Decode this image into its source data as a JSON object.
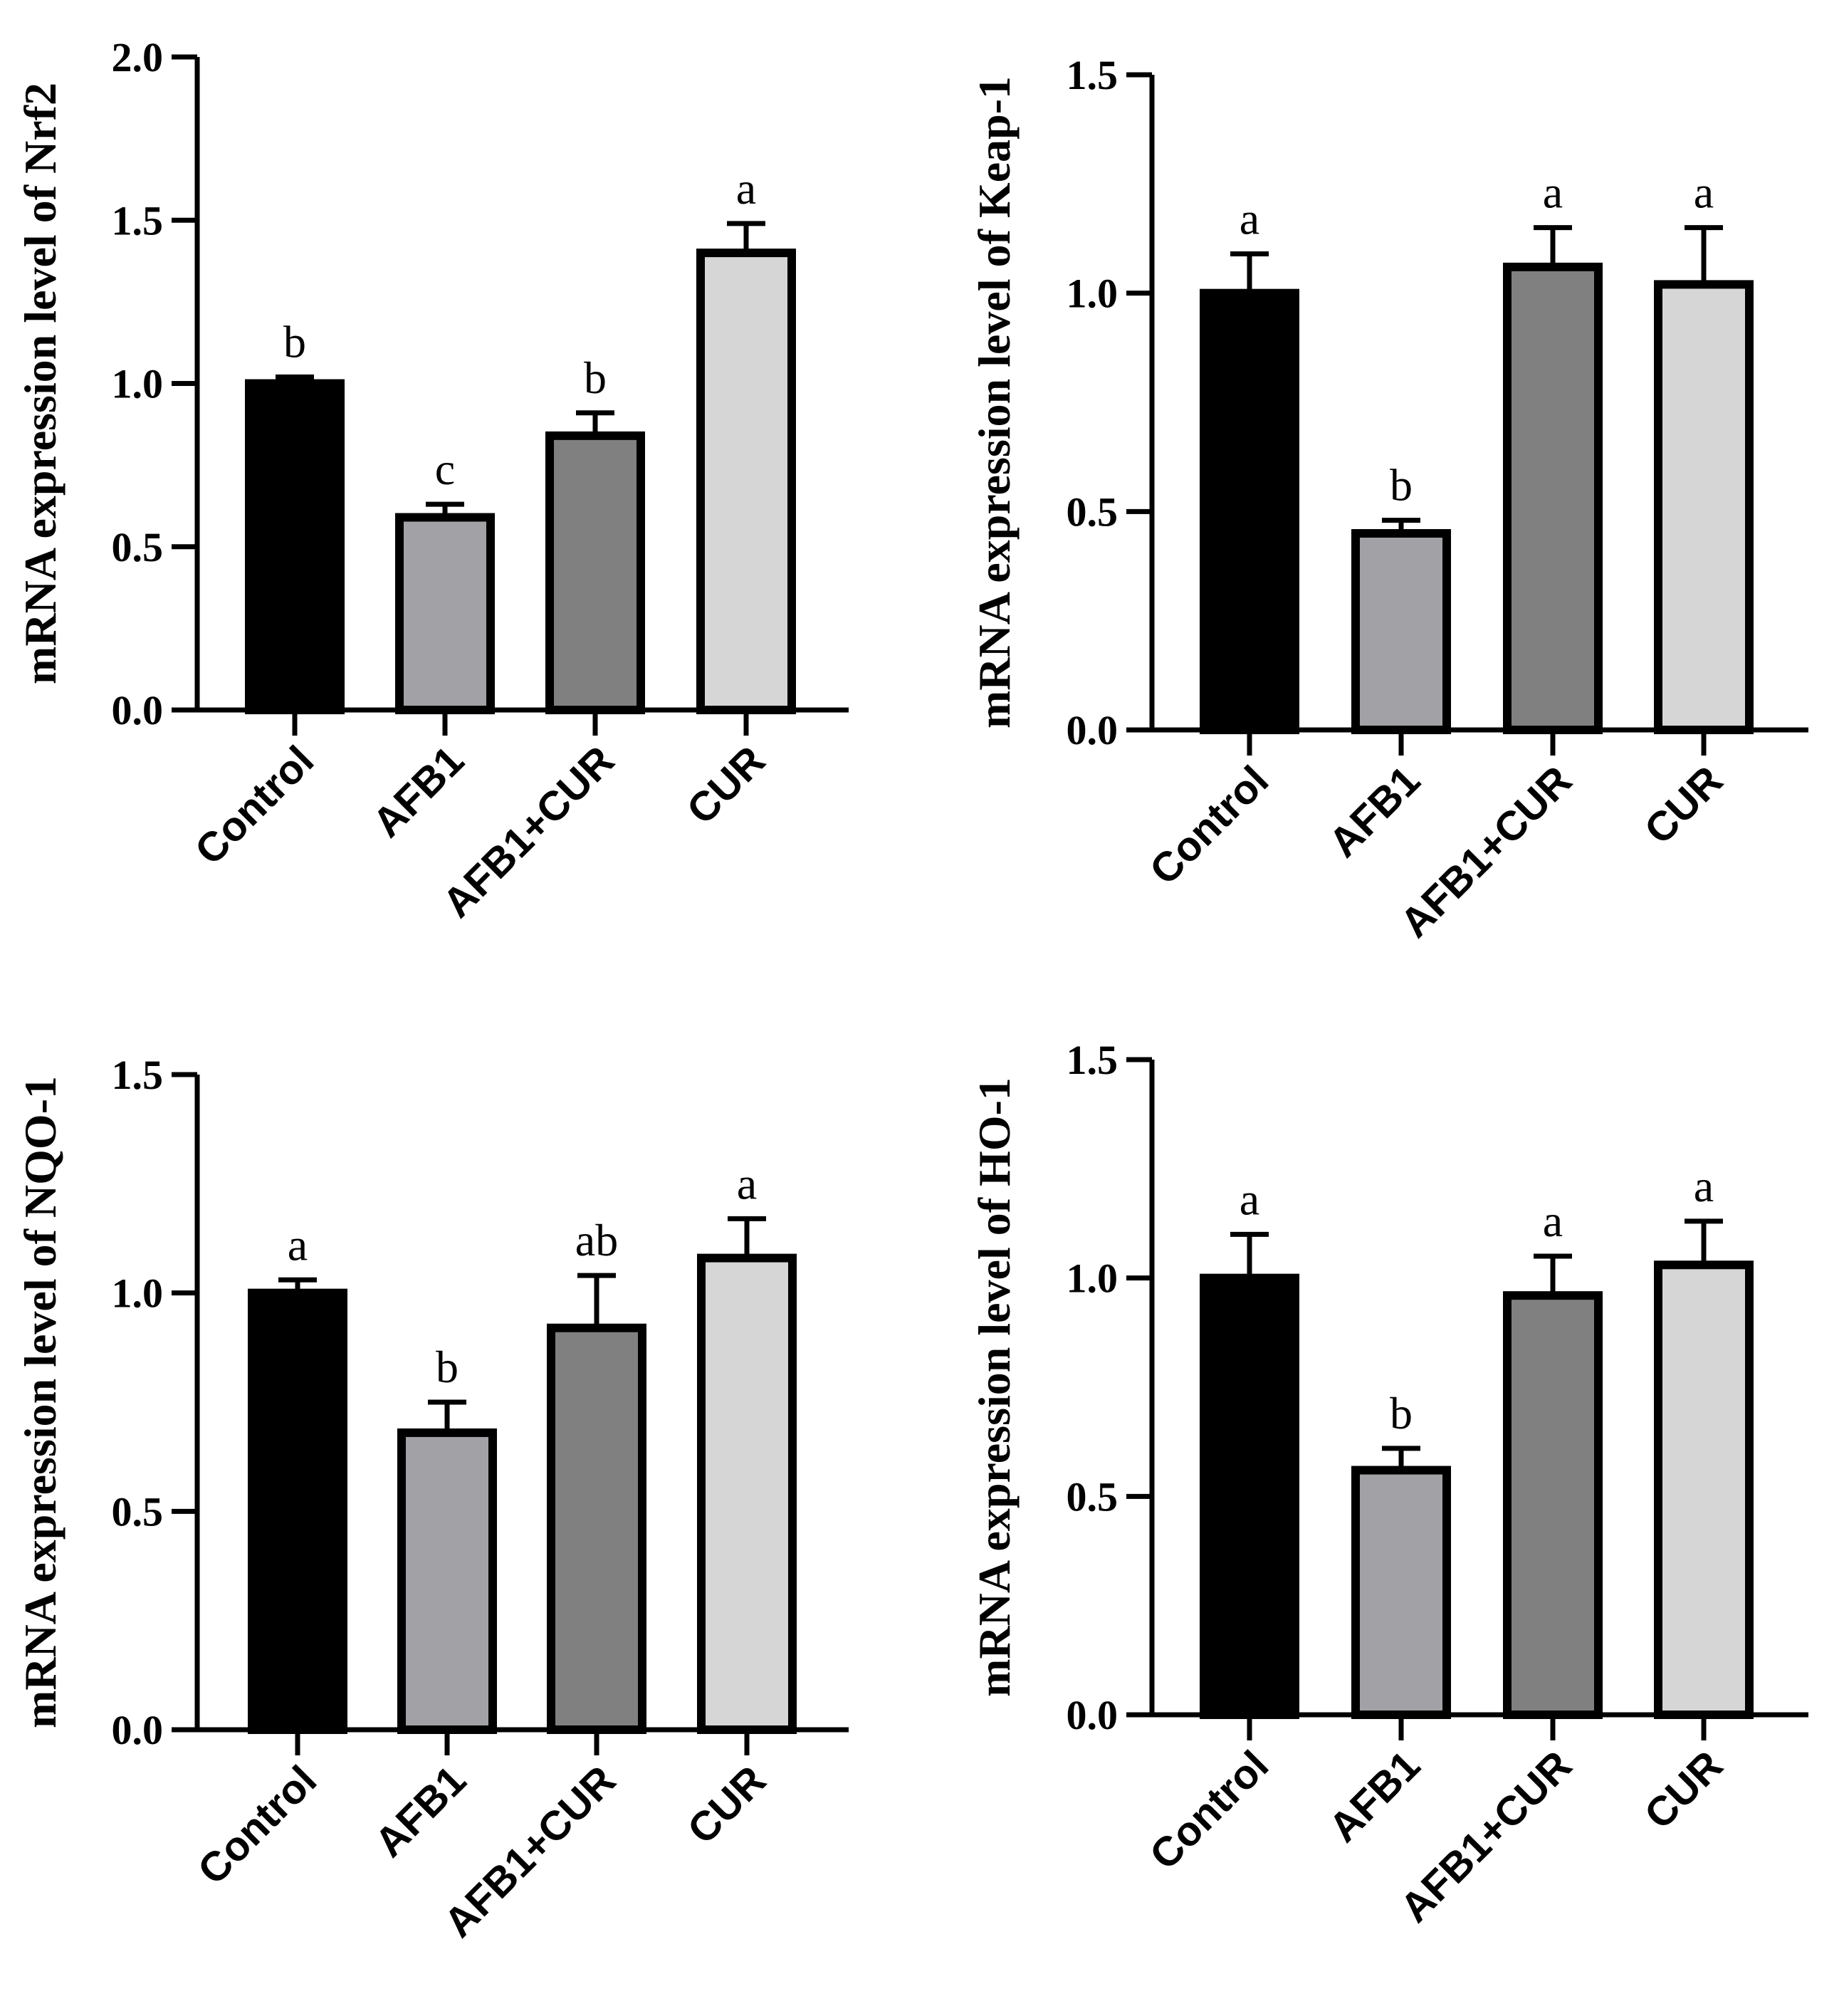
{
  "chart_data": [
    {
      "type": "bar",
      "ylabel": "mRNA expression level of Nrf2",
      "categories": [
        "Control",
        "AFB1",
        "AFB1+CUR",
        "CUR"
      ],
      "values": [
        1.0,
        0.59,
        0.84,
        1.4
      ],
      "errors": [
        0.02,
        0.04,
        0.07,
        0.09
      ],
      "letters": [
        "b",
        "c",
        "b",
        "a"
      ],
      "ylim": [
        0,
        2.0
      ],
      "ticks": [
        0.0,
        0.5,
        1.0,
        1.5,
        2.0
      ],
      "tick_labels": [
        "0.0",
        "0.5",
        "1.0",
        "1.5",
        "2.0"
      ]
    },
    {
      "type": "bar",
      "ylabel": "mRNA expression level of Keap-1",
      "categories": [
        "Control",
        "AFB1",
        "AFB1+CUR",
        "CUR"
      ],
      "values": [
        1.0,
        0.45,
        1.06,
        1.02
      ],
      "errors": [
        0.09,
        0.03,
        0.09,
        0.13
      ],
      "letters": [
        "a",
        "b",
        "a",
        "a"
      ],
      "ylim": [
        0,
        1.5
      ],
      "ticks": [
        0.0,
        0.5,
        1.0,
        1.5
      ],
      "tick_labels": [
        "0.0",
        "0.5",
        "1.0",
        "1.5"
      ]
    },
    {
      "type": "bar",
      "ylabel": "mRNA expression level of NQO-1",
      "categories": [
        "Control",
        "AFB1",
        "AFB1+CUR",
        "CUR"
      ],
      "values": [
        1.0,
        0.68,
        0.92,
        1.08
      ],
      "errors": [
        0.03,
        0.07,
        0.12,
        0.09
      ],
      "letters": [
        "a",
        "b",
        "ab",
        "a"
      ],
      "ylim": [
        0,
        1.5
      ],
      "ticks": [
        0.0,
        0.5,
        1.0,
        1.5
      ],
      "tick_labels": [
        "0.0",
        "0.5",
        "1.0",
        "1.5"
      ]
    },
    {
      "type": "bar",
      "ylabel": "mRNA expression level of HO-1",
      "categories": [
        "Control",
        "AFB1",
        "AFB1+CUR",
        "CUR"
      ],
      "values": [
        1.0,
        0.56,
        0.96,
        1.03
      ],
      "errors": [
        0.1,
        0.05,
        0.09,
        0.1
      ],
      "letters": [
        "a",
        "b",
        "a",
        "a"
      ],
      "ylim": [
        0,
        1.5
      ],
      "ticks": [
        0.0,
        0.5,
        1.0,
        1.5
      ],
      "tick_labels": [
        "0.0",
        "0.5",
        "1.0",
        "1.5"
      ]
    }
  ],
  "colors": {
    "bars": [
      "#000000",
      "#a2a2a6",
      "#808080",
      "#d6d6d6"
    ],
    "outline": "#000000"
  }
}
